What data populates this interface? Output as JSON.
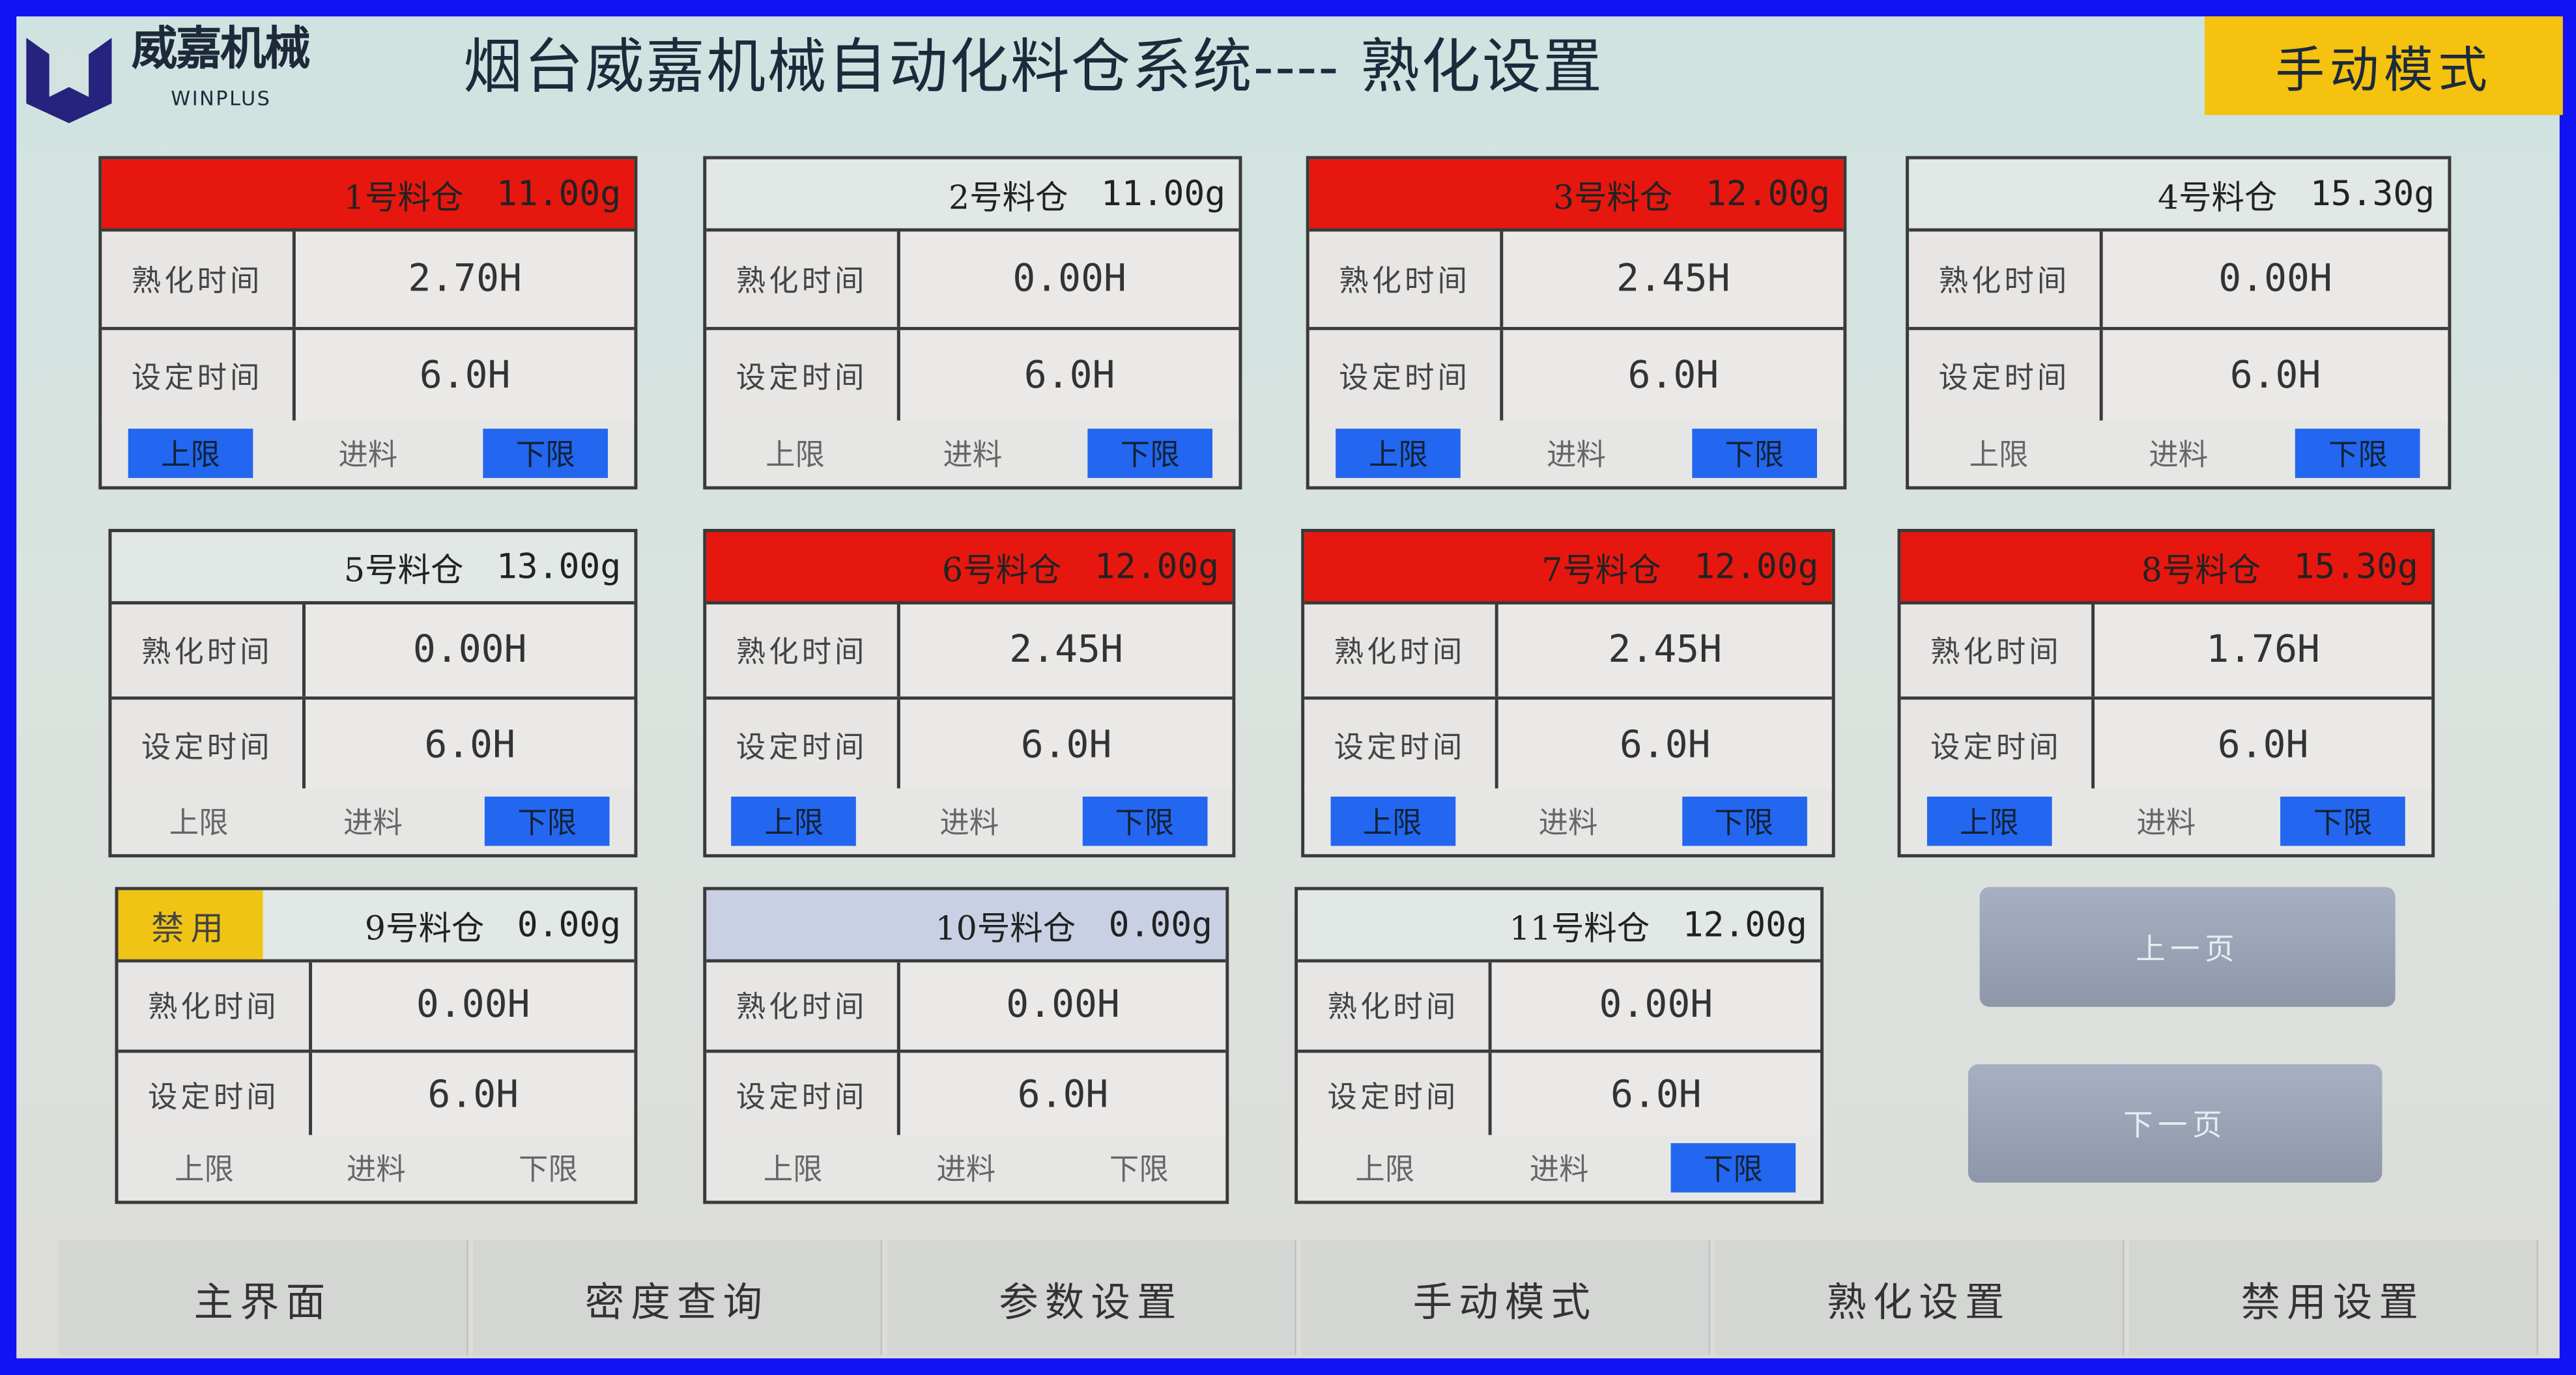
{
  "logo": {
    "text_cn": "威嘉机械",
    "text_en": "WINPLUS"
  },
  "header": {
    "title": "烟台威嘉机械自动化料仓系统----   熟化设置",
    "mode_badge": "手动模式"
  },
  "labels": {
    "aging_time": "熟化时间",
    "set_time": "设定时间",
    "upper": "上限",
    "feed": "进料",
    "lower": "下限",
    "disabled": "禁用"
  },
  "colors": {
    "alarm_red": "#e6170f",
    "indicator_blue": "#2366ef",
    "mode_yellow": "#f4c20f",
    "border_blue": "#1212f2"
  },
  "bins": [
    {
      "name": "1号料仓",
      "weight": "11.00g",
      "header": "red",
      "disabled": false,
      "aging": "2.70H",
      "set": "6.0H",
      "upper": true,
      "feed": false,
      "lower": true
    },
    {
      "name": "2号料仓",
      "weight": "11.00g",
      "header": "light",
      "disabled": false,
      "aging": "0.00H",
      "set": "6.0H",
      "upper": false,
      "feed": false,
      "lower": true
    },
    {
      "name": "3号料仓",
      "weight": "12.00g",
      "header": "red",
      "disabled": false,
      "aging": "2.45H",
      "set": "6.0H",
      "upper": true,
      "feed": false,
      "lower": true
    },
    {
      "name": "4号料仓",
      "weight": "15.30g",
      "header": "light",
      "disabled": false,
      "aging": "0.00H",
      "set": "6.0H",
      "upper": false,
      "feed": false,
      "lower": true
    },
    {
      "name": "5号料仓",
      "weight": "13.00g",
      "header": "light",
      "disabled": false,
      "aging": "0.00H",
      "set": "6.0H",
      "upper": false,
      "feed": false,
      "lower": true
    },
    {
      "name": "6号料仓",
      "weight": "12.00g",
      "header": "red",
      "disabled": false,
      "aging": "2.45H",
      "set": "6.0H",
      "upper": true,
      "feed": false,
      "lower": true
    },
    {
      "name": "7号料仓",
      "weight": "12.00g",
      "header": "red",
      "disabled": false,
      "aging": "2.45H",
      "set": "6.0H",
      "upper": true,
      "feed": false,
      "lower": true
    },
    {
      "name": "8号料仓",
      "weight": "15.30g",
      "header": "red",
      "disabled": false,
      "aging": "1.76H",
      "set": "6.0H",
      "upper": true,
      "feed": false,
      "lower": true
    },
    {
      "name": "9号料仓",
      "weight": "0.00g",
      "header": "light",
      "disabled": true,
      "aging": "0.00H",
      "set": "6.0H",
      "upper": false,
      "feed": false,
      "lower": false
    },
    {
      "name": "10号料仓",
      "weight": "0.00g",
      "header": "blue",
      "disabled": false,
      "aging": "0.00H",
      "set": "6.0H",
      "upper": false,
      "feed": false,
      "lower": false
    },
    {
      "name": "11号料仓",
      "weight": "12.00g",
      "header": "light",
      "disabled": false,
      "aging": "0.00H",
      "set": "6.0H",
      "upper": false,
      "feed": false,
      "lower": true
    }
  ],
  "paging": {
    "prev": "上一页",
    "next": "下一页"
  },
  "nav": [
    "主界面",
    "密度查询",
    "参数设置",
    "手动模式",
    "熟化设置",
    "禁用设置"
  ]
}
